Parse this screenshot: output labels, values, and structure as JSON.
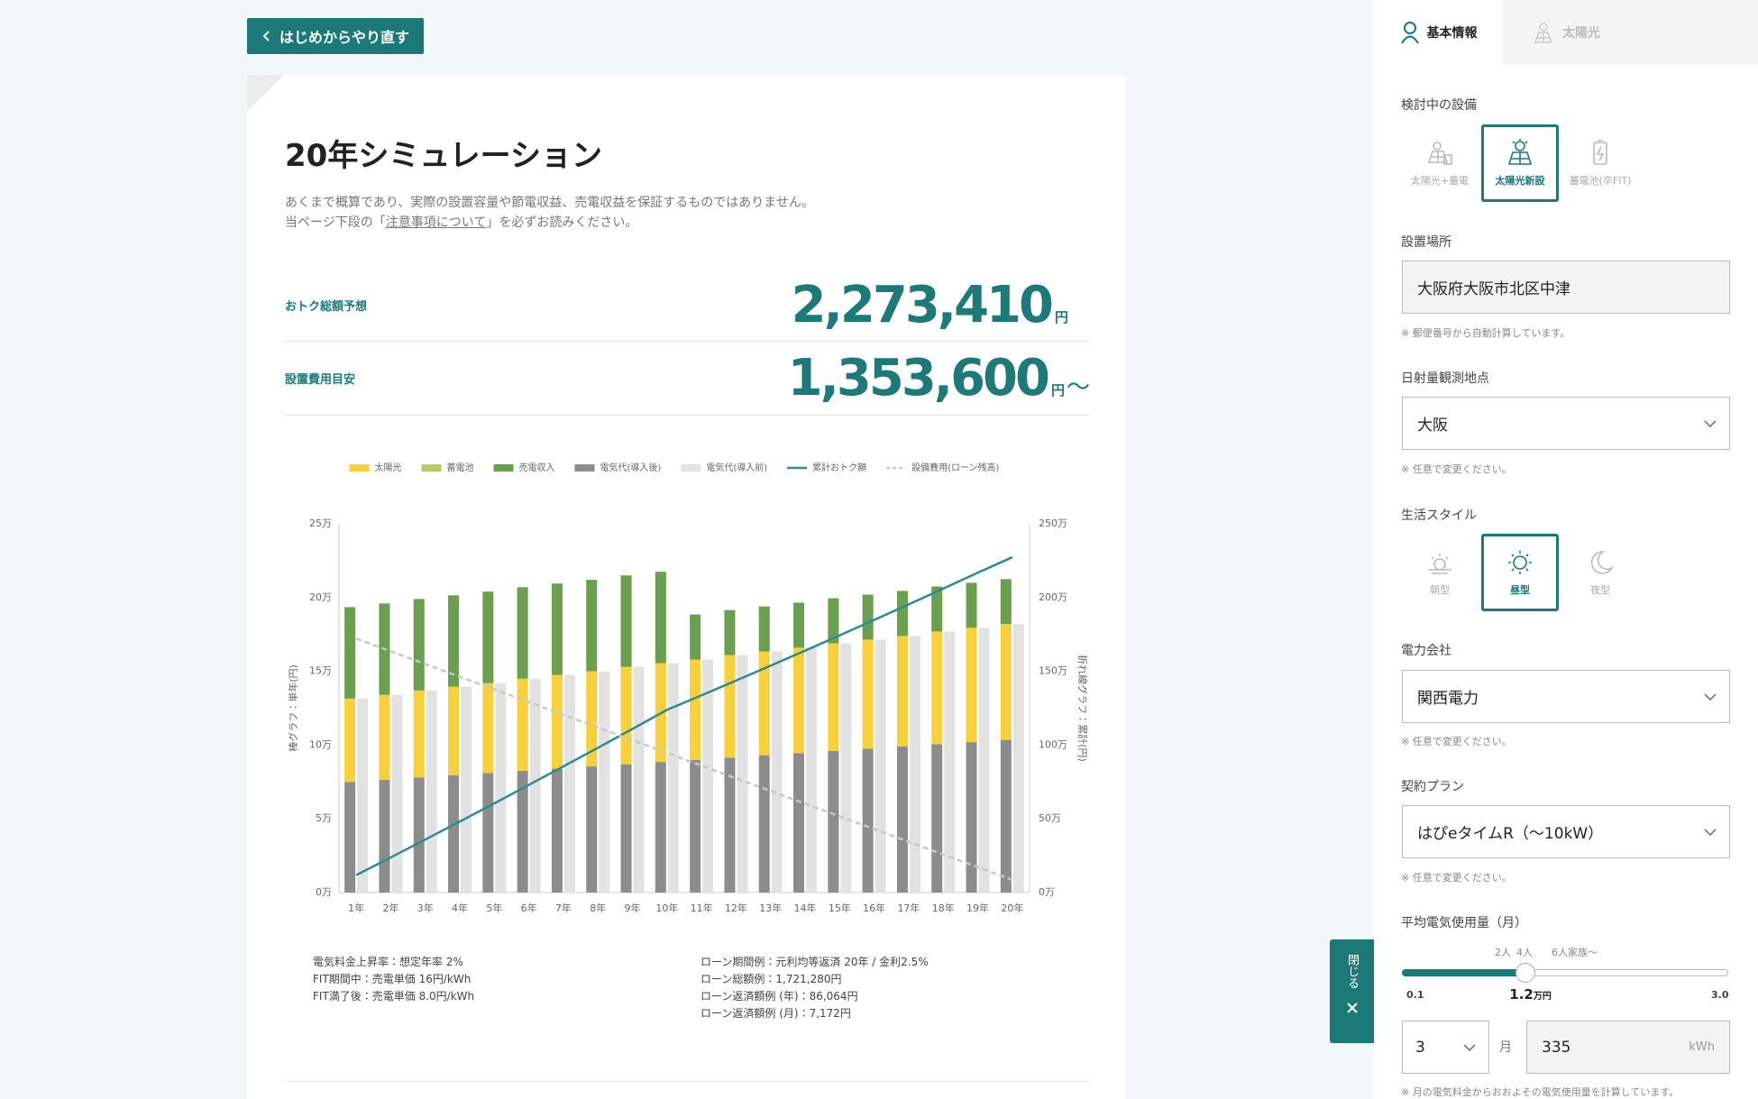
{
  "back_button": "はじめからやり直す",
  "title": "20年シミュレーション",
  "description": {
    "line1": "あくまで概算であり、実際の設置容量や節電収益、売電収益を保証するものではありません。",
    "line2_before": "当ページ下段の「",
    "line2_link": "注意事項について",
    "line2_after": "」を必ずお読みください。"
  },
  "summary": [
    {
      "label": "おトク総額予想",
      "value": "2,273,410",
      "unit": "円"
    },
    {
      "label": "設置費用目安",
      "value": "1,353,600",
      "unit": "円",
      "suffix": "〜"
    }
  ],
  "chart_data": {
    "type": "bar",
    "categories": [
      "1年",
      "2年",
      "3年",
      "4年",
      "5年",
      "6年",
      "7年",
      "8年",
      "9年",
      "10年",
      "11年",
      "12年",
      "13年",
      "14年",
      "15年",
      "16年",
      "17年",
      "18年",
      "19年",
      "20年"
    ],
    "y_label": "棒グラフ：単年(円)",
    "y2_label": "折れ線グラフ：累計(円)",
    "ylim": [
      0,
      250000
    ],
    "yticks": [
      {
        "value": 0,
        "label": "0万"
      },
      {
        "value": 50000,
        "label": "5万"
      },
      {
        "value": 100000,
        "label": "10万"
      },
      {
        "value": 150000,
        "label": "15万"
      },
      {
        "value": 200000,
        "label": "20万"
      },
      {
        "value": 250000,
        "label": "25万"
      }
    ],
    "y2lim": [
      0,
      2500000
    ],
    "y2ticks": [
      {
        "value": 0,
        "label": "0万"
      },
      {
        "value": 500000,
        "label": "50万"
      },
      {
        "value": 1000000,
        "label": "100万"
      },
      {
        "value": 1500000,
        "label": "150万"
      },
      {
        "value": 2000000,
        "label": "200万"
      },
      {
        "value": 2500000,
        "label": "250万"
      }
    ],
    "grid": false,
    "legend": "top",
    "series": [
      {
        "name": "太陽光",
        "type": "bar",
        "position": "stacked",
        "color": "#f8d03b",
        "values": [
          56500,
          57500,
          59000,
          60000,
          61000,
          62500,
          63500,
          64500,
          66000,
          67000,
          68000,
          69500,
          70500,
          71500,
          73000,
          74000,
          75000,
          76500,
          77500,
          78500
        ]
      },
      {
        "name": "蓄電池",
        "type": "bar",
        "position": "stacked",
        "color": "#b3cc6a",
        "values": [
          0,
          0,
          0,
          0,
          0,
          0,
          0,
          0,
          0,
          0,
          0,
          0,
          0,
          0,
          0,
          0,
          0,
          0,
          0,
          0
        ]
      },
      {
        "name": "売電収入",
        "type": "bar",
        "position": "stacked",
        "color": "#6a9f4f",
        "values": [
          62000,
          62000,
          62000,
          62000,
          62000,
          62000,
          62000,
          62000,
          62000,
          62000,
          30500,
          30500,
          30500,
          30500,
          30500,
          30500,
          30500,
          30500,
          30500,
          30500
        ]
      },
      {
        "name": "電気代(導入後)",
        "type": "bar",
        "position": "base",
        "color": "#8c8c8c",
        "values": [
          75000,
          76500,
          78000,
          79500,
          81000,
          82500,
          84000,
          85500,
          87000,
          88500,
          90000,
          91500,
          93000,
          94500,
          96000,
          97500,
          99000,
          100500,
          102000,
          103500
        ]
      },
      {
        "name": "電気代(導入前)",
        "type": "bar",
        "position": "right",
        "color": "#e2e2e2",
        "values": [
          131500,
          134000,
          137000,
          139500,
          142000,
          145000,
          147500,
          150000,
          153000,
          155500,
          158000,
          161000,
          163500,
          166000,
          169000,
          171500,
          174000,
          177000,
          179500,
          182000
        ]
      },
      {
        "name": "累計おトク額",
        "type": "line",
        "axis": "y2",
        "dash": false,
        "color": "#2b8c8e",
        "values": [
          118500,
          238000,
          359500,
          481500,
          604500,
          730000,
          855500,
          981500,
          1109500,
          1238500,
          1337000,
          1437000,
          1538000,
          1640000,
          1743500,
          1848000,
          1953500,
          2060500,
          2168500,
          2273410
        ]
      },
      {
        "name": "設備費用(ローン残高)",
        "type": "line",
        "axis": "y2",
        "dash": true,
        "color": "#c8c8c8",
        "values": [
          1721280,
          1635216,
          1549152,
          1463088,
          1377024,
          1290960,
          1204896,
          1118832,
          1032768,
          946704,
          860640,
          774576,
          688512,
          602448,
          516384,
          430320,
          344256,
          258192,
          172128,
          86064
        ]
      }
    ]
  },
  "assumptions": {
    "left": [
      "電気料金上昇率：想定年率 2%",
      "FIT期間中：売電単価 16円/kWh",
      "FIT満了後：売電単価 8.0円/kWh"
    ],
    "right": [
      "ローン期間例：元利均等返済 20年 / 金利2.5%",
      "ローン総額例：1,721,280円",
      "ローン返済額例 (年)：86,064円",
      "ローン返済額例 (月)：7,172円"
    ]
  },
  "sidebar": {
    "tabs": [
      "基本情報",
      "太陽光"
    ],
    "equipment": {
      "label": "検討中の設備",
      "options": [
        "太陽光+蓄電",
        "太陽光新設",
        "蓄電池(卒FIT)"
      ],
      "selected": 1
    },
    "location": {
      "label": "設置場所",
      "value": "大阪府大阪市北区中津",
      "note": "※ 郵便番号から自動計算しています。"
    },
    "station": {
      "label": "日射量観測地点",
      "value": "大阪",
      "note": "※ 任意で変更ください。"
    },
    "lifestyle": {
      "label": "生活スタイル",
      "options": [
        "朝型",
        "昼型",
        "夜型"
      ],
      "selected": 1
    },
    "company": {
      "label": "電力会社",
      "value": "関西電力",
      "note": "※ 任意で変更ください。"
    },
    "plan": {
      "label": "契約プラン",
      "value": "はぴeタイムR（〜10kW）",
      "note": "※ 任意で変更ください。"
    },
    "usage": {
      "label": "平均電気使用量（月）",
      "markers": [
        "2人",
        "4人",
        "6人家族〜"
      ],
      "min": 0.1,
      "max": {
        "value": 3,
        "label": "3.0"
      },
      "value": 1.2,
      "unit": "万円",
      "month": "3",
      "month_unit": "月",
      "kwh": "335",
      "kwh_unit": "kWh",
      "note": "※ 月の電気料金からおおよその電気使用量を計算しています。"
    }
  },
  "close_button": "閉じる"
}
